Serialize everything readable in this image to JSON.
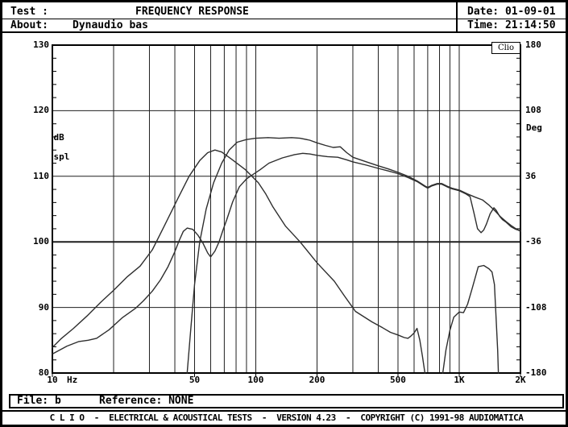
{
  "header": {
    "test_label": "Test :",
    "title": "FREQUENCY RESPONSE",
    "about_label": "About:",
    "about_value": "Dynaudio bas",
    "date_label": "Date:",
    "date_value": "01-09-01",
    "time_label": "Time:",
    "time_value": "21:14:50"
  },
  "footer": {
    "file_label": "File:",
    "file_value": "b",
    "reference_label": "Reference:",
    "reference_value": "NONE",
    "credit": "C L I O  -  ELECTRICAL & ACOUSTICAL TESTS  -  VERSION 4.23  -  COPYRIGHT (C) 1991-98 AUDIOMATICA"
  },
  "chart_data": {
    "type": "line",
    "title": "FREQUENCY RESPONSE",
    "watermark": "Clio",
    "grid": true,
    "x_axis": {
      "scale": "log",
      "unit": "Hz",
      "min": 10,
      "max": 2000,
      "tick_values": [
        10,
        50,
        100,
        200,
        500,
        1000,
        2000
      ],
      "tick_labels": [
        "10",
        "50",
        "100",
        "200",
        "500",
        "1K",
        "2K"
      ],
      "gridline_values": [
        20,
        30,
        40,
        50,
        60,
        70,
        80,
        90,
        100,
        200,
        300,
        400,
        500,
        600,
        700,
        800,
        900,
        1000
      ]
    },
    "y_left": {
      "label_line1": "dB",
      "label_line2": "spl",
      "min": 80,
      "max": 130,
      "ticks": [
        130,
        120,
        110,
        100,
        90,
        80
      ],
      "minor_tick_step": 2
    },
    "y_right": {
      "label": "Deg",
      "min": -180,
      "max": 180,
      "ticks": [
        180,
        108,
        36,
        -36,
        -108,
        -180
      ]
    },
    "series": [
      {
        "name": "curve1-port-nearfield",
        "color": "#2e2e2e",
        "segments": [
          [
            [
              10,
              83.9
            ],
            [
              11,
              85.2
            ],
            [
              12.7,
              86.8
            ],
            [
              14.8,
              88.7
            ],
            [
              17.3,
              90.8
            ],
            [
              20,
              92.6
            ],
            [
              23.4,
              94.7
            ],
            [
              27,
              96.3
            ],
            [
              31,
              98.8
            ],
            [
              35.6,
              102.5
            ],
            [
              41.5,
              106.7
            ],
            [
              47,
              110
            ],
            [
              53,
              112.4
            ],
            [
              58,
              113.6
            ],
            [
              63,
              114
            ],
            [
              68,
              113.7
            ],
            [
              76,
              112.6
            ],
            [
              89,
              111
            ],
            [
              103,
              109
            ],
            [
              112,
              107.3
            ],
            [
              121,
              105.4
            ],
            [
              140,
              102.4
            ],
            [
              165,
              100
            ],
            [
              200,
              96.8
            ],
            [
              243,
              94
            ],
            [
              272,
              91.8
            ],
            [
              309,
              89.4
            ],
            [
              372,
              87.8
            ],
            [
              420,
              86.9
            ],
            [
              459,
              86.2
            ],
            [
              500,
              85.8
            ],
            [
              537,
              85.4
            ],
            [
              560,
              85.3
            ],
            [
              577,
              85.6
            ],
            [
              600,
              86.1
            ],
            [
              620,
              86.8
            ],
            [
              640,
              85
            ],
            [
              660,
              82.5
            ],
            [
              678,
              80
            ]
          ],
          [
            [
              830,
              80
            ],
            [
              860,
              83.5
            ],
            [
              900,
              86.5
            ],
            [
              940,
              88.5
            ],
            [
              1000,
              89.3
            ],
            [
              1050,
              89.2
            ],
            [
              1100,
              90.5
            ],
            [
              1160,
              93
            ],
            [
              1240,
              96.2
            ],
            [
              1320,
              96.4
            ],
            [
              1400,
              95.9
            ],
            [
              1450,
              95.4
            ],
            [
              1490,
              93.5
            ],
            [
              1520,
              88
            ],
            [
              1545,
              83.5
            ],
            [
              1558,
              80
            ]
          ]
        ]
      },
      {
        "name": "curve2-farfield",
        "color": "#2e2e2e",
        "segments": [
          [
            [
              46,
              80
            ],
            [
              48,
              87
            ],
            [
              50,
              93.5
            ],
            [
              53,
              100
            ],
            [
              57,
              105
            ],
            [
              62,
              109
            ],
            [
              68,
              112
            ],
            [
              74,
              114
            ],
            [
              81,
              115.2
            ],
            [
              90,
              115.6
            ],
            [
              100,
              115.8
            ],
            [
              115,
              115.9
            ],
            [
              130,
              115.8
            ],
            [
              150,
              115.9
            ],
            [
              165,
              115.8
            ],
            [
              184,
              115.5
            ],
            [
              200,
              115.1
            ],
            [
              220,
              114.7
            ],
            [
              240,
              114.4
            ],
            [
              260,
              114.5
            ],
            [
              280,
              113.6
            ],
            [
              300,
              112.9
            ],
            [
              350,
              112.2
            ],
            [
              400,
              111.6
            ],
            [
              450,
              111.1
            ],
            [
              500,
              110.6
            ],
            [
              560,
              110
            ],
            [
              620,
              109.3
            ],
            [
              680,
              108.5
            ],
            [
              700,
              108.3
            ],
            [
              730,
              108.6
            ],
            [
              780,
              108.9
            ],
            [
              820,
              108.9
            ],
            [
              870,
              108.5
            ],
            [
              920,
              108.2
            ],
            [
              1000,
              107.9
            ],
            [
              1100,
              107.3
            ],
            [
              1200,
              106.8
            ],
            [
              1300,
              106.4
            ],
            [
              1400,
              105.6
            ],
            [
              1500,
              104.7
            ],
            [
              1600,
              103.8
            ],
            [
              1700,
              103.1
            ],
            [
              1800,
              102.5
            ],
            [
              1900,
              102
            ],
            [
              2000,
              101.6
            ]
          ]
        ]
      },
      {
        "name": "curve3-cone-nearfield",
        "color": "#2e2e2e",
        "segments": [
          [
            [
              10,
              82.9
            ],
            [
              11.8,
              84.1
            ],
            [
              13.5,
              84.8
            ],
            [
              15,
              85
            ],
            [
              16.5,
              85.3
            ],
            [
              19,
              86.6
            ],
            [
              22,
              88.4
            ],
            [
              25.7,
              89.9
            ],
            [
              28,
              91
            ],
            [
              31,
              92.5
            ],
            [
              34,
              94.2
            ],
            [
              37,
              96.2
            ],
            [
              40,
              98.5
            ],
            [
              42,
              100.2
            ],
            [
              44,
              101.6
            ],
            [
              46,
              102.1
            ],
            [
              49,
              101.9
            ],
            [
              52,
              101
            ],
            [
              55,
              99.8
            ],
            [
              58,
              98.3
            ],
            [
              60,
              97.7
            ],
            [
              63,
              98.6
            ],
            [
              66,
              100
            ],
            [
              69,
              101.8
            ],
            [
              72,
              103.4
            ],
            [
              77,
              106.1
            ],
            [
              83,
              108.4
            ],
            [
              90,
              109.6
            ],
            [
              97,
              110.3
            ],
            [
              105,
              111
            ],
            [
              116,
              112
            ],
            [
              135,
              112.8
            ],
            [
              155,
              113.3
            ],
            [
              170,
              113.5
            ],
            [
              184,
              113.4
            ],
            [
              200,
              113.2
            ],
            [
              225,
              113
            ],
            [
              253,
              112.9
            ],
            [
              280,
              112.5
            ],
            [
              300,
              112.2
            ],
            [
              350,
              111.7
            ],
            [
              400,
              111.2
            ],
            [
              450,
              110.8
            ],
            [
              500,
              110.4
            ],
            [
              560,
              109.8
            ],
            [
              620,
              109.2
            ],
            [
              680,
              108.4
            ],
            [
              700,
              108.2
            ],
            [
              730,
              108.5
            ],
            [
              780,
              108.8
            ],
            [
              820,
              108.8
            ],
            [
              870,
              108.4
            ],
            [
              920,
              108.1
            ],
            [
              1000,
              107.8
            ],
            [
              1080,
              107.3
            ],
            [
              1130,
              106.9
            ],
            [
              1180,
              104.5
            ],
            [
              1230,
              102
            ],
            [
              1280,
              101.4
            ],
            [
              1320,
              101.8
            ],
            [
              1360,
              102.7
            ],
            [
              1420,
              104.3
            ],
            [
              1480,
              105.2
            ],
            [
              1520,
              104.8
            ],
            [
              1580,
              103.9
            ],
            [
              1630,
              103.4
            ],
            [
              1700,
              103
            ],
            [
              1800,
              102.3
            ],
            [
              1900,
              101.9
            ],
            [
              2000,
              101.7
            ]
          ]
        ]
      }
    ]
  }
}
